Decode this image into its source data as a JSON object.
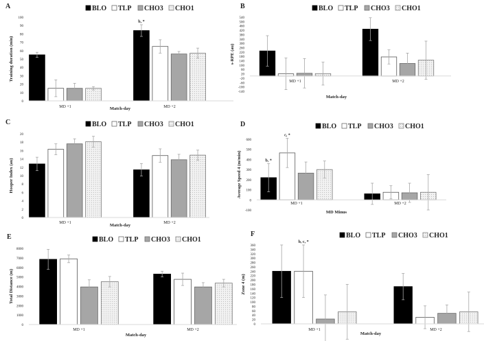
{
  "legend": [
    "BLO",
    "TLP",
    "CHO3",
    "CHO1"
  ],
  "colors": {
    "BLO": "#000000",
    "TLP": "#ffffff",
    "CHO3": "#a6a6a6",
    "CHO1": "#e6e6e6",
    "error_bar": "#a6a6a6",
    "axis": "#d9d9d9"
  },
  "chart_data": [
    {
      "panel": "A",
      "type": "bar",
      "categories": [
        "MD +1",
        "MD +2"
      ],
      "xlabel": "Match-day",
      "ylabel": "Training duration (min)",
      "ylim": [
        0,
        100
      ],
      "yticks": [
        0,
        10,
        20,
        30,
        40,
        50,
        60,
        70,
        80,
        90,
        100
      ],
      "series": [
        {
          "name": "BLO",
          "values": [
            55,
            84
          ],
          "errors": [
            3,
            7
          ]
        },
        {
          "name": "TLP",
          "values": [
            15,
            65
          ],
          "errors": [
            10,
            8
          ]
        },
        {
          "name": "CHO3",
          "values": [
            15,
            56
          ],
          "errors": [
            6,
            3
          ]
        },
        {
          "name": "CHO1",
          "values": [
            15,
            57
          ],
          "errors": [
            2,
            6
          ]
        }
      ],
      "annotations": [
        {
          "series": "BLO",
          "category": "MD +2",
          "text": "b, *"
        }
      ]
    },
    {
      "panel": "B",
      "type": "bar",
      "categories": [
        "MD +1",
        "MD +2"
      ],
      "xlabel": "Match-day",
      "ylabel": "s-RPE (au)",
      "ylim": [
        -140,
        540
      ],
      "yticks": [
        -140,
        -100,
        -60,
        -20,
        20,
        60,
        100,
        140,
        180,
        220,
        260,
        300,
        340,
        380,
        420,
        460,
        500,
        540
      ],
      "series": [
        {
          "name": "BLO",
          "values": [
            230,
            430
          ],
          "errors": [
            140,
            105
          ]
        },
        {
          "name": "TLP",
          "values": [
            20,
            175
          ],
          "errors": [
            145,
            65
          ]
        },
        {
          "name": "CHO3",
          "values": [
            25,
            115
          ],
          "errors": [
            135,
            95
          ]
        },
        {
          "name": "CHO1",
          "values": [
            22,
            145
          ],
          "errors": [
            105,
            175
          ]
        }
      ],
      "annotations": []
    },
    {
      "panel": "C",
      "type": "bar",
      "categories": [
        "MD +1",
        "MD +2"
      ],
      "xlabel": "Match-day",
      "ylabel": "Hooper Index (au)",
      "ylim": [
        0,
        20
      ],
      "yticks": [
        0,
        2,
        4,
        6,
        8,
        10,
        12,
        14,
        16,
        18,
        20
      ],
      "series": [
        {
          "name": "BLO",
          "values": [
            12.8,
            11.4
          ],
          "errors": [
            1.6,
            1.5
          ]
        },
        {
          "name": "TLP",
          "values": [
            16.3,
            14.8
          ],
          "errors": [
            1.3,
            1.6
          ]
        },
        {
          "name": "CHO3",
          "values": [
            17.6,
            13.8
          ],
          "errors": [
            1.2,
            1.3
          ]
        },
        {
          "name": "CHO1",
          "values": [
            18.1,
            14.9
          ],
          "errors": [
            1.3,
            1.2
          ]
        }
      ],
      "annotations": []
    },
    {
      "panel": "D",
      "type": "bar",
      "categories": [
        "MD +1",
        "MD +2"
      ],
      "xlabel": "MD Minus",
      "ylabel": "Average Speed 4 (m/min)",
      "ylim": [
        -100,
        600
      ],
      "yticks": [
        -100,
        0,
        100,
        200,
        300,
        400,
        500,
        600
      ],
      "series": [
        {
          "name": "BLO",
          "values": [
            220,
            60
          ],
          "errors": [
            140,
            105
          ]
        },
        {
          "name": "TLP",
          "values": [
            465,
            75
          ],
          "errors": [
            145,
            65
          ]
        },
        {
          "name": "CHO3",
          "values": [
            265,
            70
          ],
          "errors": [
            110,
            95
          ]
        },
        {
          "name": "CHO1",
          "values": [
            300,
            75
          ],
          "errors": [
            85,
            175
          ]
        }
      ],
      "annotations": [
        {
          "series": "BLO",
          "category": "MD +1",
          "text": "b, *"
        },
        {
          "series": "TLP",
          "category": "MD +1",
          "text": "c, *"
        }
      ]
    },
    {
      "panel": "E",
      "type": "bar",
      "categories": [
        "MD +1",
        "MD +2"
      ],
      "xlabel": "Match-day",
      "ylabel": "Total Distance (m)",
      "ylim": [
        0,
        8000
      ],
      "yticks": [
        0,
        1000,
        2000,
        3000,
        4000,
        5000,
        6000,
        7000,
        8000
      ],
      "series": [
        {
          "name": "BLO",
          "values": [
            6850,
            5300
          ],
          "errors": [
            1050,
            300
          ]
        },
        {
          "name": "TLP",
          "values": [
            6900,
            4750
          ],
          "errors": [
            400,
            650
          ]
        },
        {
          "name": "CHO3",
          "values": [
            3950,
            3950
          ],
          "errors": [
            750,
            450
          ]
        },
        {
          "name": "CHO1",
          "values": [
            4500,
            4350
          ],
          "errors": [
            550,
            400
          ]
        }
      ],
      "annotations": []
    },
    {
      "panel": "F",
      "type": "bar",
      "categories": [
        "MD +1",
        "MD +2"
      ],
      "xlabel": "Match-day",
      "ylabel": "Zone 4 (m)",
      "ylim": [
        0,
        360
      ],
      "yticks": [
        0,
        20,
        40,
        60,
        80,
        100,
        120,
        140,
        160,
        180,
        200,
        220,
        240,
        260,
        280,
        300,
        320,
        340,
        360
      ],
      "series": [
        {
          "name": "BLO",
          "values": [
            240,
            170
          ],
          "errors": [
            120,
            60
          ]
        },
        {
          "name": "TLP",
          "values": [
            240,
            30
          ],
          "errors": [
            120,
            52
          ]
        },
        {
          "name": "CHO3",
          "values": [
            22,
            48
          ],
          "errors": [
            110,
            38
          ]
        },
        {
          "name": "CHO1",
          "values": [
            55,
            55
          ],
          "errors": [
            125,
            90
          ]
        }
      ],
      "annotations": [
        {
          "series": "TLP",
          "category": "MD +1",
          "text": "b, c, *"
        }
      ]
    }
  ]
}
